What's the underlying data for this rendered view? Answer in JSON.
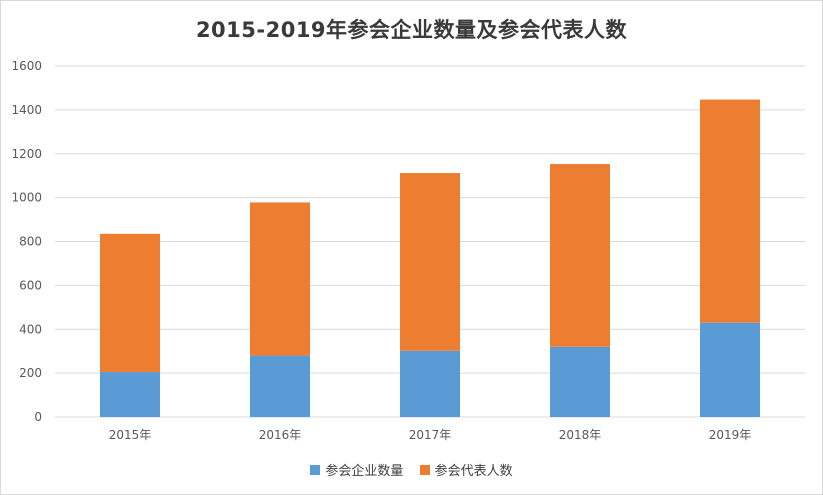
{
  "colors": {
    "series1": "#5b9bd5",
    "series2": "#ed7d31",
    "grid": "#d9d9d9"
  },
  "chart_data": {
    "type": "bar",
    "stacked": true,
    "title": "2015-2019年参会企业数量及参会代表人数",
    "categories": [
      "2015年",
      "2016年",
      "2017年",
      "2018年",
      "2019年"
    ],
    "series": [
      {
        "name": "参会企业数量",
        "values": [
          205,
          280,
          302,
          320,
          430
        ]
      },
      {
        "name": "参会代表人数",
        "values": [
          630,
          698,
          810,
          833,
          1017
        ]
      }
    ],
    "ylim": [
      0,
      1600
    ],
    "yticks": [
      "0",
      "200",
      "400",
      "600",
      "800",
      "1000",
      "1200",
      "1400",
      "1600"
    ],
    "grid": true,
    "legend": "bottom"
  }
}
